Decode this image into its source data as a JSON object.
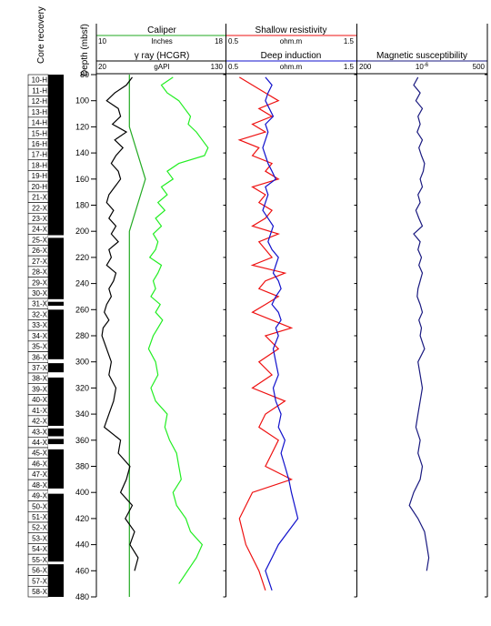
{
  "chart_data": {
    "type": "line",
    "depth_axis": {
      "label": "Depth (mbsf)",
      "range": [
        80,
        480
      ],
      "ticks": [
        80,
        100,
        120,
        140,
        160,
        180,
        200,
        220,
        240,
        260,
        280,
        300,
        320,
        340,
        360,
        380,
        400,
        420,
        440,
        460,
        480
      ]
    },
    "core_recovery": {
      "label": "Core recovery",
      "cores": [
        "10-H",
        "11-H",
        "12-H",
        "13-H",
        "14-H",
        "15-H",
        "16-H",
        "17-H",
        "18-H",
        "19-H",
        "20-H",
        "21-X",
        "22-X",
        "23-X",
        "24-X",
        "25-X",
        "26-X",
        "27-X",
        "28-X",
        "29-X",
        "30-X",
        "31-X",
        "32-X",
        "33-X",
        "34-X",
        "35-X",
        "36-X",
        "37-X",
        "38-X",
        "39-X",
        "40-X",
        "41-X",
        "42-X",
        "43-X",
        "44-X",
        "45-X",
        "46-X",
        "47-X",
        "48-X",
        "49-X",
        "50-X",
        "51-X",
        "52-X",
        "53-X",
        "54-X",
        "55-X",
        "56-X",
        "57-X",
        "58-X"
      ],
      "gaps_mbsf": [
        [
          203,
          205
        ],
        [
          252,
          254
        ],
        [
          257,
          260
        ],
        [
          298,
          301
        ],
        [
          308,
          312
        ],
        [
          349,
          351
        ],
        [
          357,
          359
        ],
        [
          363,
          367
        ],
        [
          397,
          401
        ],
        [
          453,
          455
        ]
      ]
    },
    "tracks": [
      {
        "curves": [
          {
            "name": "Caliper",
            "unit": "Inches",
            "scale": [
              10,
              18
            ],
            "color": "#22aa22",
            "x": [
              12,
              12,
              13,
              12,
              12,
              12,
              12,
              12,
              12,
              12,
              12,
              12
            ],
            "y": [
              80,
              120,
              160,
              200,
              240,
              280,
              320,
              360,
              400,
              440,
              460,
              480
            ]
          },
          {
            "name": "γ ray (HCGR)",
            "unit": "gAPI",
            "scale": [
              20,
              130
            ],
            "color": "#000000",
            "x": [
              50,
              45,
              35,
              28,
              38,
              40,
              33,
              45,
              35,
              42,
              36,
              32,
              38,
              40,
              35,
              30,
              28,
              34,
              30,
              36,
              32,
              38,
              30,
              32,
              28,
              36,
              34,
              30,
              32,
              28,
              26,
              30,
              25,
              24,
              28,
              32,
              30,
              36,
              34,
              30,
              26,
              40,
              38,
              48,
              45,
              40,
              50,
              44,
              52,
              48,
              55,
              52
            ],
            "y": [
              82,
              88,
              94,
              100,
              106,
              112,
              118,
              124,
              130,
              136,
              142,
              148,
              154,
              160,
              166,
              172,
              178,
              184,
              190,
              196,
              202,
              208,
              214,
              220,
              226,
              232,
              238,
              244,
              250,
              256,
              262,
              268,
              274,
              280,
              290,
              300,
              310,
              320,
              330,
              340,
              350,
              360,
              370,
              380,
              390,
              400,
              410,
              420,
              430,
              440,
              450,
              460
            ]
          },
          {
            "name": "γ ray (HCGR) green",
            "unit": "gAPI",
            "scale": [
              20,
              130
            ],
            "color": "#22ee22",
            "x": [
              85,
              75,
              80,
              90,
              95,
              100,
              98,
              105,
              110,
              115,
              112,
              90,
              80,
              85,
              75,
              80,
              72,
              78,
              70,
              75,
              68,
              72,
              70,
              65,
              75,
              72,
              68,
              70,
              66,
              74,
              70,
              76,
              72,
              68,
              64,
              70,
              72,
              66,
              70,
              80,
              78,
              82,
              88,
              90,
              92,
              85,
              88,
              96,
              100,
              110,
              105,
              90
            ],
            "y": [
              82,
              88,
              94,
              100,
              106,
              112,
              118,
              124,
              130,
              136,
              142,
              148,
              154,
              160,
              166,
              172,
              178,
              184,
              190,
              196,
              202,
              208,
              214,
              220,
              226,
              232,
              238,
              244,
              250,
              256,
              262,
              268,
              274,
              280,
              290,
              300,
              310,
              320,
              330,
              340,
              350,
              360,
              370,
              380,
              390,
              400,
              410,
              420,
              430,
              440,
              450,
              470
            ]
          }
        ]
      },
      {
        "curves": [
          {
            "name": "Shallow resistivity",
            "unit": "ohm.m",
            "scale": [
              0.5,
              1.5
            ],
            "color": "#ee1111",
            "x": [
              0.6,
              0.7,
              0.8,
              0.9,
              0.75,
              0.85,
              0.7,
              0.8,
              0.6,
              0.75,
              0.7,
              0.85,
              0.8,
              0.9,
              0.7,
              0.8,
              0.75,
              0.85,
              0.8,
              0.7,
              0.9,
              0.75,
              0.8,
              0.85,
              0.7,
              0.95,
              0.8,
              0.75,
              0.9,
              0.8,
              0.7,
              0.85,
              1.0,
              0.8,
              0.9,
              0.75,
              0.85,
              0.7,
              0.95,
              0.8,
              0.75,
              0.9,
              0.85,
              0.8,
              1.0,
              0.7,
              0.6,
              0.65,
              0.7,
              0.75,
              0.8
            ],
            "y": [
              82,
              88,
              94,
              100,
              106,
              112,
              118,
              124,
              130,
              136,
              142,
              148,
              154,
              160,
              166,
              172,
              178,
              184,
              190,
              196,
              202,
              208,
              214,
              220,
              226,
              232,
              238,
              244,
              250,
              256,
              262,
              268,
              274,
              280,
              290,
              300,
              310,
              320,
              330,
              340,
              350,
              360,
              370,
              380,
              390,
              400,
              420,
              440,
              450,
              460,
              475
            ]
          },
          {
            "name": "Deep induction",
            "unit": "ohm.m",
            "scale": [
              0.5,
              1.5
            ],
            "color": "#1111cc",
            "x": [
              0.8,
              0.85,
              0.82,
              0.8,
              0.83,
              0.86,
              0.8,
              0.82,
              0.8,
              0.78,
              0.8,
              0.82,
              0.85,
              0.88,
              0.8,
              0.82,
              0.8,
              0.78,
              0.82,
              0.86,
              0.84,
              0.82,
              0.85,
              0.9,
              0.88,
              0.86,
              0.9,
              0.92,
              0.88,
              0.85,
              0.9,
              0.92,
              0.88,
              0.9,
              0.86,
              0.88,
              0.9,
              0.86,
              0.88,
              0.92,
              0.9,
              0.95,
              0.92,
              0.95,
              0.98,
              1.0,
              1.05,
              0.9,
              0.85,
              0.8,
              0.85
            ],
            "y": [
              82,
              88,
              94,
              100,
              106,
              112,
              118,
              124,
              130,
              136,
              142,
              148,
              154,
              160,
              166,
              172,
              178,
              184,
              190,
              196,
              202,
              208,
              214,
              220,
              226,
              232,
              238,
              244,
              250,
              256,
              262,
              268,
              274,
              280,
              290,
              300,
              310,
              320,
              330,
              340,
              350,
              360,
              370,
              380,
              390,
              400,
              420,
              440,
              450,
              460,
              475
            ]
          }
        ]
      },
      {
        "curves": [
          {
            "name": "Magnetic susceptibility",
            "unit": "10⁻⁶",
            "scale": [
              200,
              500
            ],
            "color": "#1a1a80",
            "x": [
              340,
              330,
              345,
              335,
              350,
              340,
              345,
              338,
              350,
              342,
              348,
              355,
              352,
              345,
              350,
              340,
              345,
              335,
              342,
              350,
              330,
              345,
              340,
              348,
              342,
              350,
              345,
              340,
              338,
              345,
              350,
              342,
              348,
              345,
              355,
              340,
              345,
              350,
              345,
              340,
              335,
              345,
              340,
              350,
              345,
              330,
              320,
              340,
              355,
              360,
              365,
              360
            ],
            "y": [
              82,
              88,
              94,
              100,
              106,
              112,
              118,
              124,
              130,
              136,
              142,
              148,
              154,
              160,
              166,
              172,
              178,
              184,
              190,
              196,
              202,
              208,
              214,
              220,
              226,
              232,
              238,
              244,
              250,
              256,
              262,
              268,
              274,
              280,
              290,
              300,
              310,
              320,
              330,
              340,
              350,
              360,
              370,
              380,
              390,
              400,
              410,
              420,
              430,
              440,
              450,
              460
            ]
          }
        ]
      }
    ],
    "grid": false
  }
}
